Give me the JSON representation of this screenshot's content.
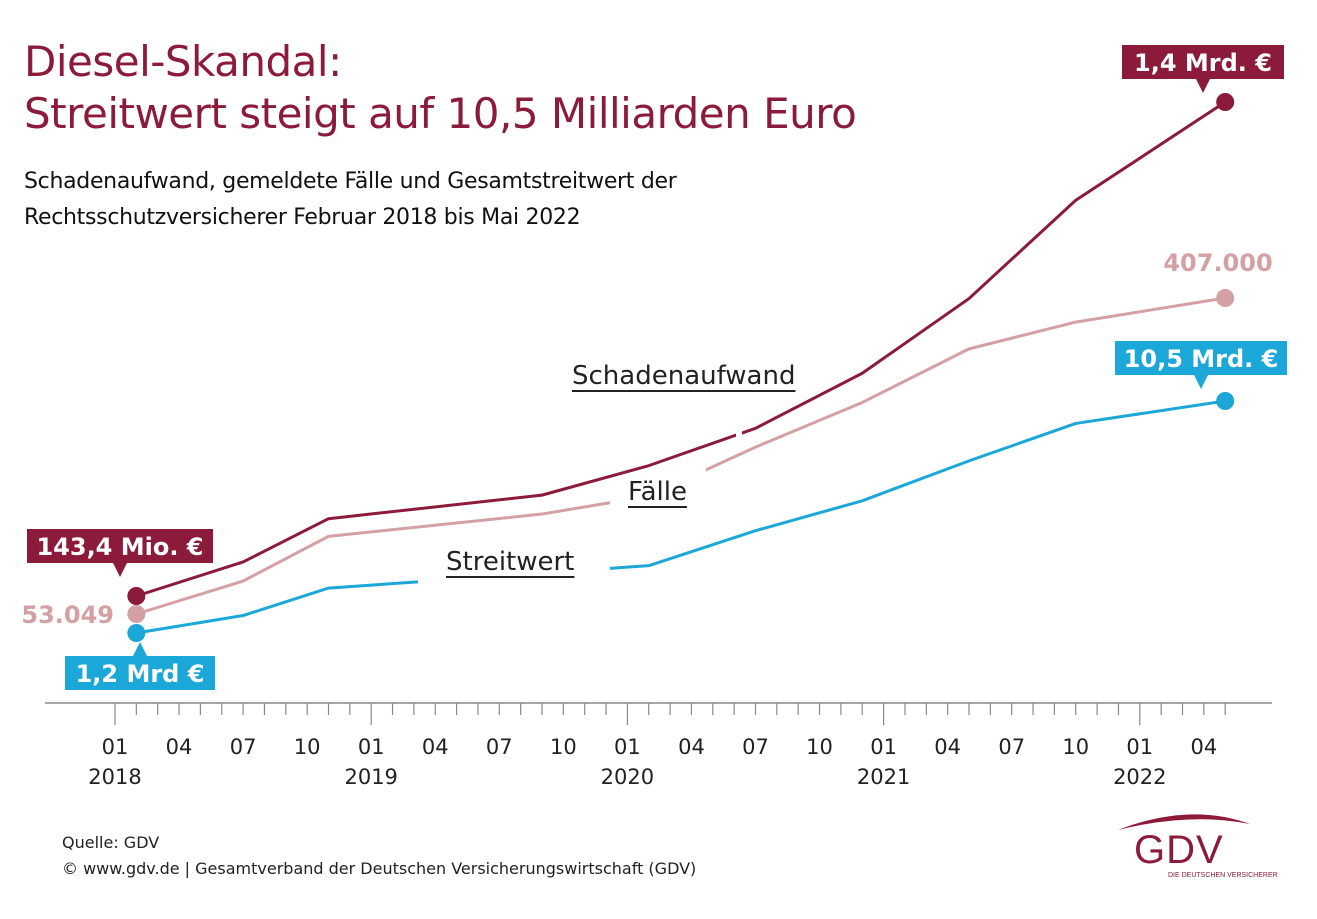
{
  "header": {
    "title_line1": "Diesel-Skandal:",
    "title_line2": "Streitwert steigt auf 10,5 Milliarden Euro",
    "subtitle_line1": "Schadenaufwand, gemeldete Fälle und Gesamtstreitwert der",
    "subtitle_line2": "Rechtsschutzversicherer Februar 2018 bis Mai 2022"
  },
  "colors": {
    "title": "#8c1a3a",
    "schadenaufwand": "#8c1a3a",
    "faelle": "#d4a0a4",
    "streitwert": "#1ba8d8",
    "axis": "#888888",
    "text": "#222222"
  },
  "chart_data": {
    "type": "line",
    "title": "Diesel-Skandal: Streitwert steigt auf 10,5 Milliarden Euro",
    "subtitle": "Schadenaufwand, gemeldete Fälle und Gesamtstreitwert der Rechtsschutzversicherer Februar 2018 bis Mai 2022",
    "xlabel": "",
    "ylabel": "",
    "x_range": [
      "2018-01",
      "2022-05"
    ],
    "x_ticks_major": [
      {
        "month": "01",
        "year": "2018",
        "idx": 0
      },
      {
        "month": "04",
        "year": "",
        "idx": 3
      },
      {
        "month": "07",
        "year": "",
        "idx": 6
      },
      {
        "month": "10",
        "year": "",
        "idx": 9
      },
      {
        "month": "01",
        "year": "2019",
        "idx": 12
      },
      {
        "month": "04",
        "year": "",
        "idx": 15
      },
      {
        "month": "07",
        "year": "",
        "idx": 18
      },
      {
        "month": "10",
        "year": "",
        "idx": 21
      },
      {
        "month": "01",
        "year": "2020",
        "idx": 24
      },
      {
        "month": "04",
        "year": "",
        "idx": 27
      },
      {
        "month": "07",
        "year": "",
        "idx": 30
      },
      {
        "month": "10",
        "year": "",
        "idx": 33
      },
      {
        "month": "01",
        "year": "2021",
        "idx": 36
      },
      {
        "month": "04",
        "year": "",
        "idx": 39
      },
      {
        "month": "07",
        "year": "",
        "idx": 42
      },
      {
        "month": "10",
        "year": "",
        "idx": 45
      },
      {
        "month": "01",
        "year": "2022",
        "idx": 48
      },
      {
        "month": "04",
        "year": "",
        "idx": 51
      }
    ],
    "x_months": [
      1,
      6,
      10,
      20,
      25,
      30,
      35,
      40,
      45,
      52
    ],
    "x_labels": [
      "2018-02",
      "2018-07",
      "2018-11",
      "2019-09",
      "2020-02",
      "2020-07",
      "2020-12",
      "2021-05",
      "2021-10",
      "2022-05"
    ],
    "grid": false,
    "legend": "inline labels",
    "series": [
      {
        "name": "Schadenaufwand",
        "unit": "Mio. €",
        "values": [
          143.4,
          230,
          340,
          400,
          475,
          570,
          710,
          900,
          1150,
          1400
        ],
        "start_label": "143,4 Mio. €",
        "end_label": "1,4 Mrd. €"
      },
      {
        "name": "Fälle",
        "unit": "Fälle",
        "values": [
          53049,
          90000,
          140000,
          165000,
          185000,
          240000,
          290000,
          350000,
          380000,
          407000
        ],
        "start_label": "53.049",
        "end_label": "407.000"
      },
      {
        "name": "Streitwert",
        "unit": "Mrd. €",
        "values": [
          1.2,
          1.9,
          3.0,
          3.6,
          3.9,
          5.3,
          6.5,
          8.1,
          9.6,
          10.5
        ],
        "start_label": "1,2 Mrd €",
        "end_label": "10,5 Mrd. €"
      }
    ]
  },
  "footer": {
    "source": "Quelle: GDV",
    "copyright": "© www.gdv.de | Gesamtverband der Deutschen Versicherungswirtschaft (GDV)"
  },
  "logo": {
    "text": "GDV",
    "tagline": "DIE DEUTSCHEN VERSICHERER"
  }
}
